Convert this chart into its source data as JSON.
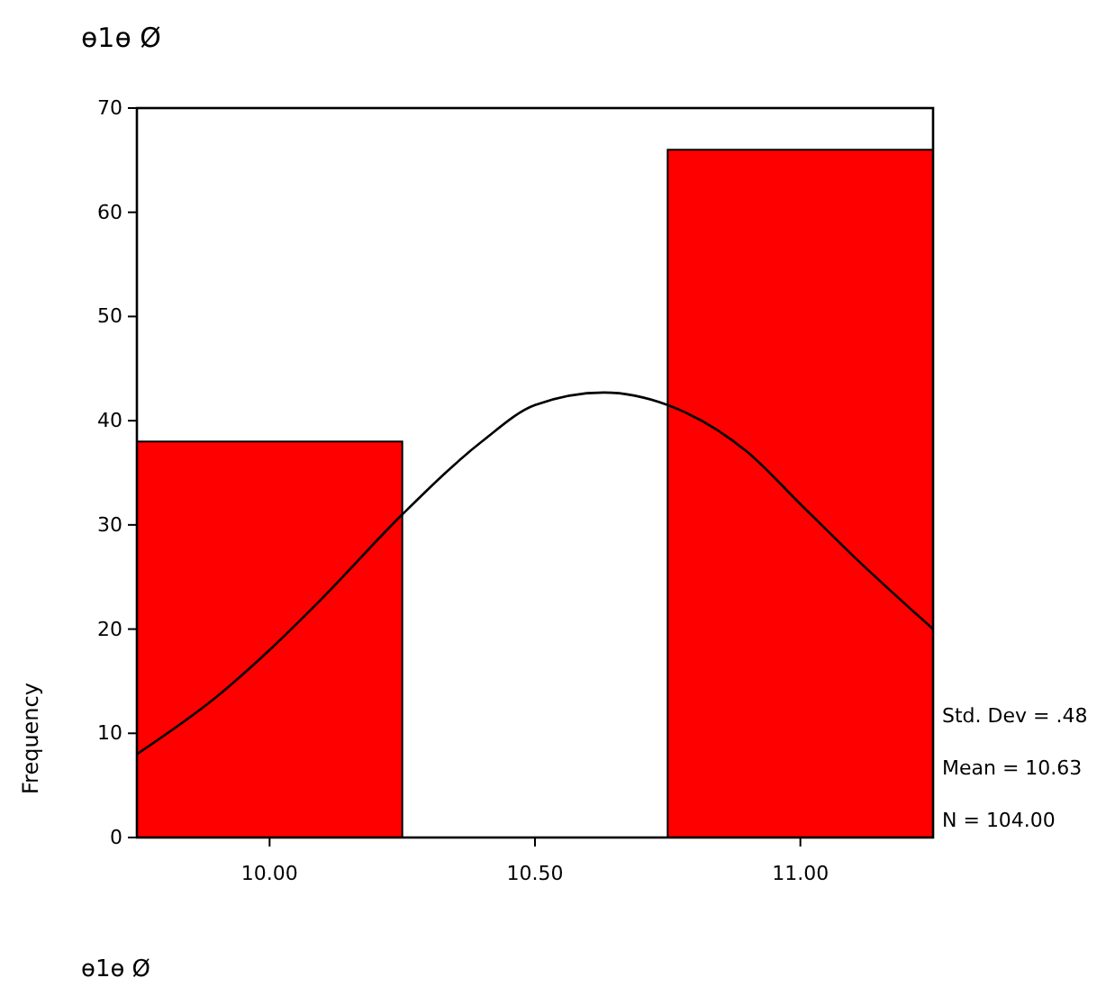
{
  "chart_data": {
    "type": "histogram",
    "title": "ɵ1ɵ Ø",
    "xlabel": "ɵ1ɵ Ø",
    "ylabel": "Frequency",
    "bins": [
      9.75,
      10.25,
      10.75,
      11.25
    ],
    "values": [
      38,
      0,
      66
    ],
    "color": "#ff0000",
    "series": [
      {
        "type": "line",
        "color": "#000000",
        "x": [
          9.75,
          9.9,
          10.0,
          10.1,
          10.25,
          10.4,
          10.5,
          10.63,
          10.75,
          10.9,
          11.0,
          11.1,
          11.25
        ],
        "values": [
          8,
          13.5,
          18,
          23,
          31,
          38,
          41.5,
          42.7,
          41.5,
          37,
          32,
          27,
          20
        ]
      }
    ],
    "xlim": [
      9.75,
      11.25
    ],
    "xticks": [
      {
        "value": 10,
        "label": "10.00"
      },
      {
        "value": 10.5,
        "label": "10.50"
      },
      {
        "value": 11,
        "label": "11.00"
      }
    ],
    "ylim": [
      0,
      70
    ],
    "yticks": [
      0,
      10,
      20,
      30,
      40,
      50,
      60,
      70
    ],
    "grid": false,
    "annotations": [
      "Std. Dev = .48",
      "Mean = 10.63",
      "N = 104.00"
    ]
  }
}
